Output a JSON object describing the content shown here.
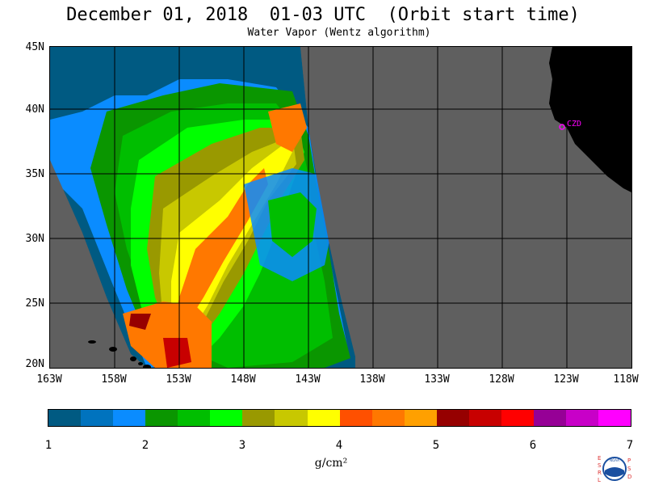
{
  "title": "December 01, 2018  01-03 UTC  (Orbit start time)",
  "subtitle": "Water Vapor (Wentz algorithm)",
  "lat_labels": [
    "45N",
    "40N",
    "35N",
    "30N",
    "25N",
    "20N"
  ],
  "lon_labels": [
    "163W",
    "158W",
    "153W",
    "148W",
    "143W",
    "138W",
    "133W",
    "128W",
    "123W",
    "118W"
  ],
  "station_label": "CZD",
  "colorbar": {
    "colors": [
      "#005a82",
      "#0073be",
      "#0a8cff",
      "#0a9600",
      "#00be00",
      "#00ff00",
      "#999900",
      "#c8c800",
      "#ffff00",
      "#ff5000",
      "#ff7800",
      "#ffa000",
      "#960000",
      "#c80000",
      "#ff0000",
      "#960096",
      "#c800c8",
      "#ff00ff"
    ],
    "ticks": [
      "1",
      "2",
      "3",
      "4",
      "5",
      "6",
      "7"
    ],
    "unit": "g/cm²"
  },
  "logo_letters": {
    "left": [
      "E",
      "S",
      "R",
      "L"
    ],
    "right": [
      "P",
      "S",
      "D"
    ],
    "center": "NOAA"
  },
  "colors": {
    "land": "#000000",
    "no_data": "#5f5f5f",
    "station": "#ff00ff"
  }
}
